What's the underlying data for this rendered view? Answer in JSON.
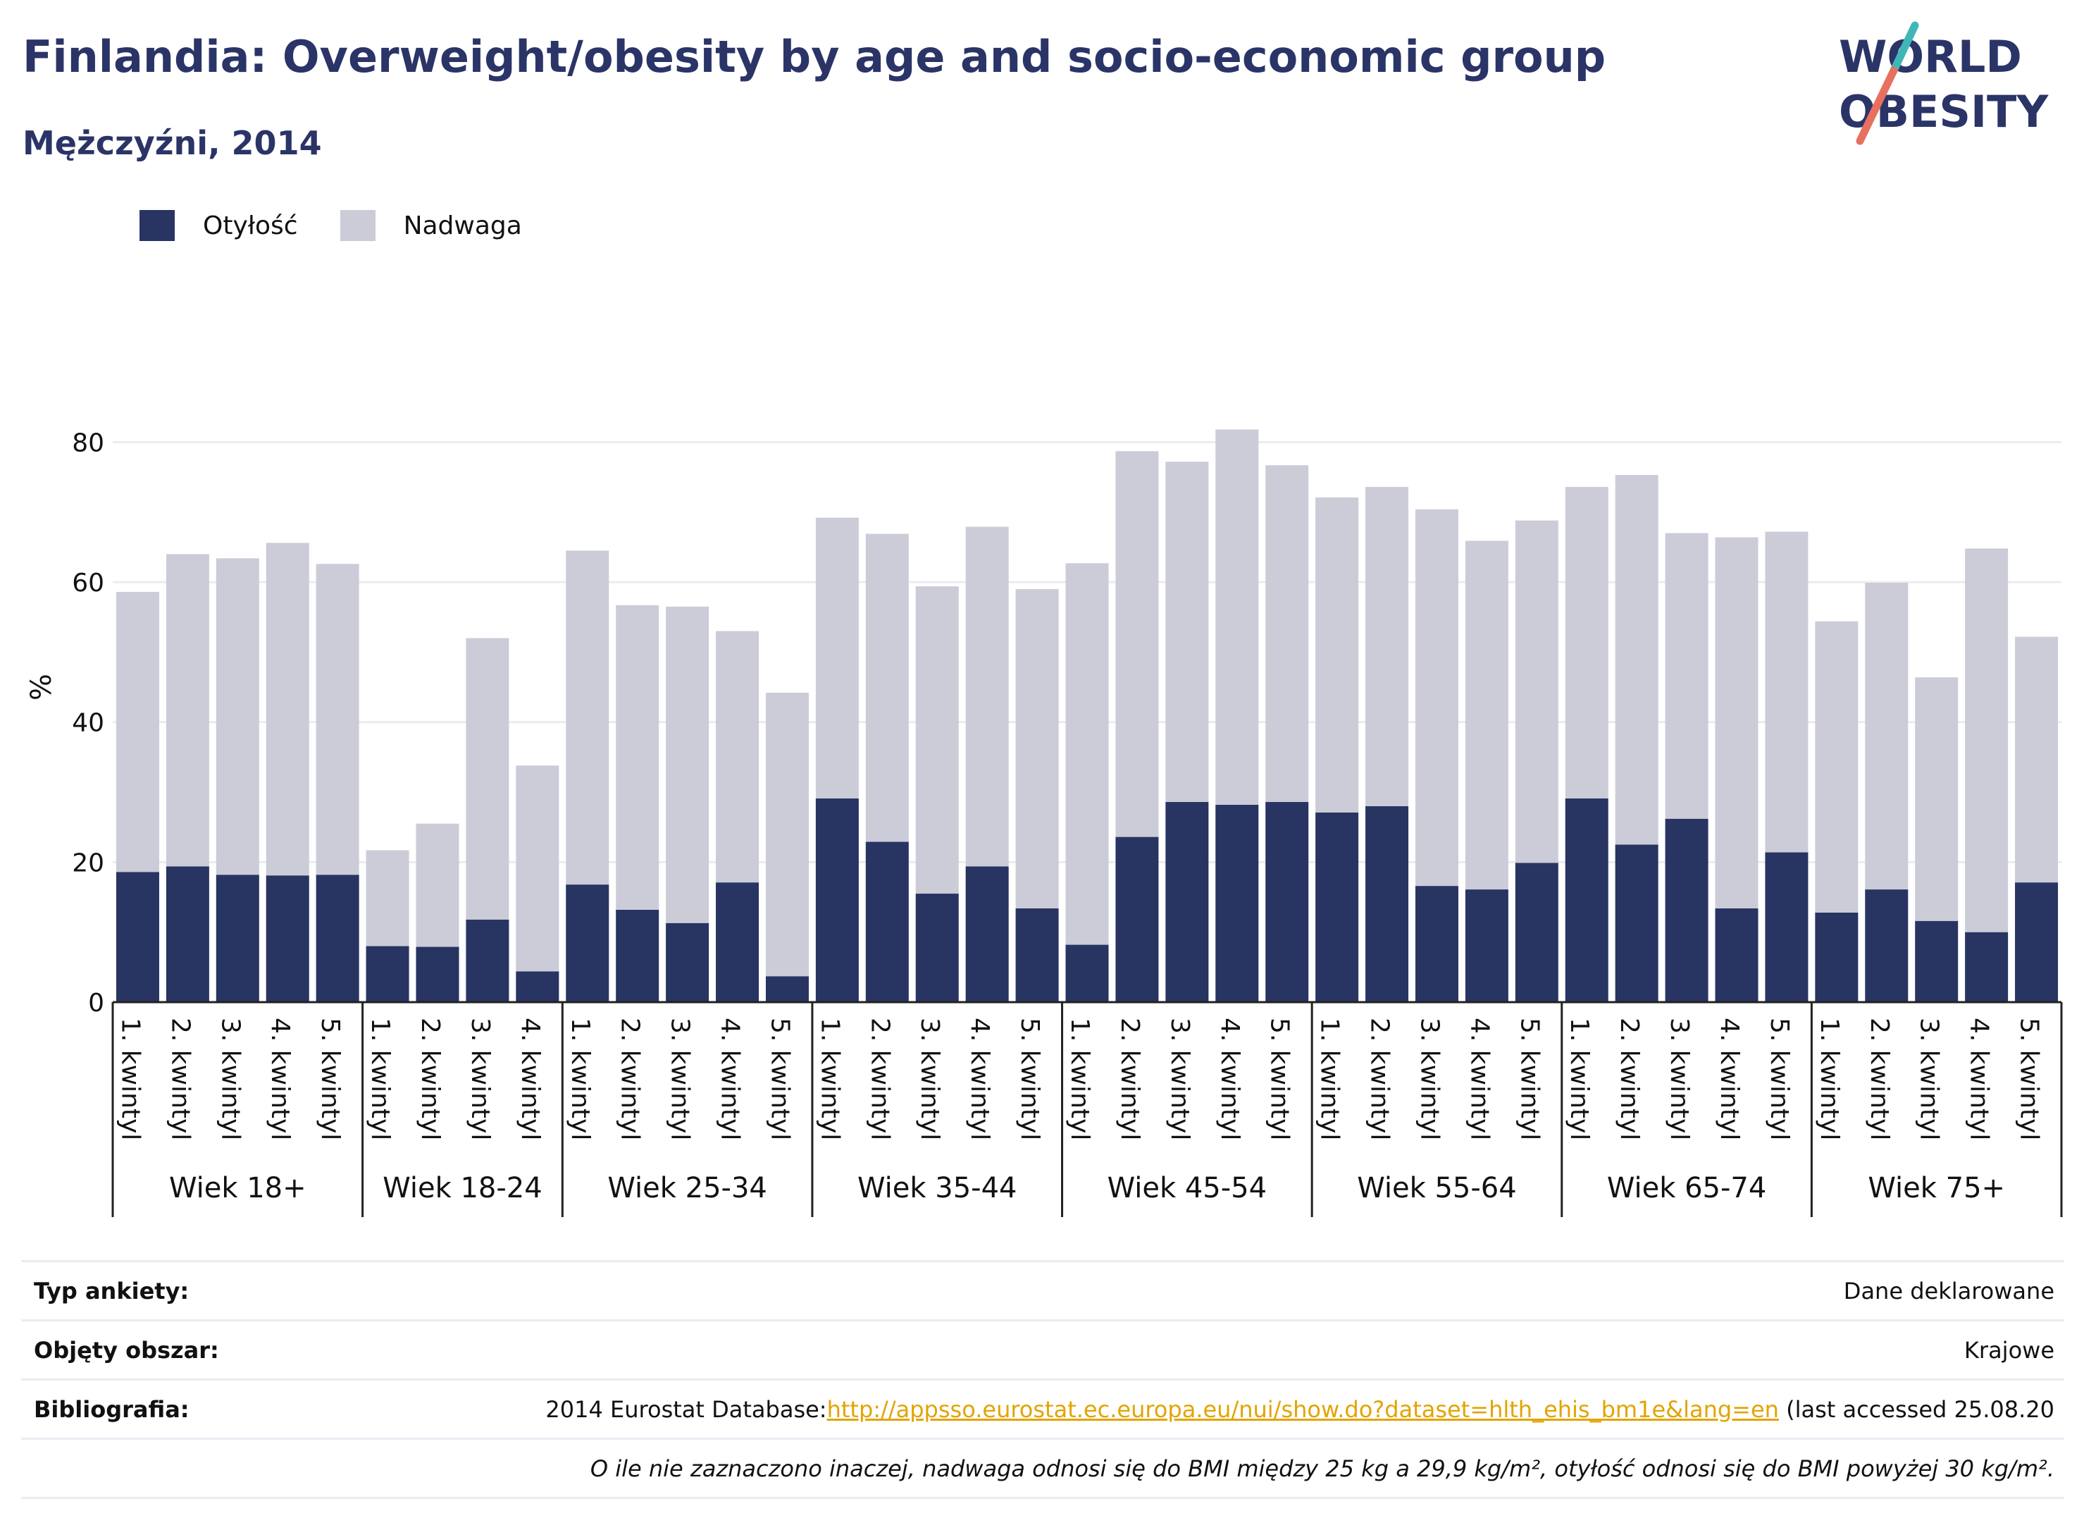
{
  "header": {
    "title": "Finlandia: Overweight/obesity by age and socio-economic group",
    "subtitle": "Mężczyźni, 2014",
    "logo_line1": "WORLD",
    "logo_line2": "OBESITY"
  },
  "legend": [
    {
      "label": "Otyłość",
      "color": "#283462"
    },
    {
      "label": "Nadwaga",
      "color": "#cbccd8"
    }
  ],
  "chart_data": {
    "type": "bar",
    "stacked": true,
    "ylabel": "%",
    "ylim": [
      0,
      90
    ],
    "yticks": [
      0,
      20,
      40,
      60,
      80
    ],
    "grid": true,
    "legend_position": "top-left",
    "categories": [
      "1. kwintyl",
      "2. kwintyl",
      "3. kwintyl",
      "4. kwintyl",
      "5. kwintyl",
      "1. kwintyl",
      "2. kwintyl",
      "3. kwintyl",
      "4. kwintyl",
      "1. kwintyl",
      "2. kwintyl",
      "3. kwintyl",
      "4. kwintyl",
      "5. kwintyl",
      "1. kwintyl",
      "2. kwintyl",
      "3. kwintyl",
      "4. kwintyl",
      "5. kwintyl",
      "1. kwintyl",
      "2. kwintyl",
      "3. kwintyl",
      "4. kwintyl",
      "5. kwintyl",
      "1. kwintyl",
      "2. kwintyl",
      "3. kwintyl",
      "4. kwintyl",
      "5. kwintyl",
      "1. kwintyl",
      "2. kwintyl",
      "3. kwintyl",
      "4. kwintyl",
      "5. kwintyl",
      "1. kwintyl",
      "2. kwintyl",
      "3. kwintyl",
      "4. kwintyl",
      "5. kwintyl"
    ],
    "groups": [
      {
        "label": "Wiek 18+",
        "count": 5
      },
      {
        "label": "Wiek 18-24",
        "count": 4
      },
      {
        "label": "Wiek 25-34",
        "count": 5
      },
      {
        "label": "Wiek 35-44",
        "count": 5
      },
      {
        "label": "Wiek 45-54",
        "count": 5
      },
      {
        "label": "Wiek 55-64",
        "count": 5
      },
      {
        "label": "Wiek 65-74",
        "count": 5
      },
      {
        "label": "Wiek 75+",
        "count": 5
      }
    ],
    "series": [
      {
        "name": "Otyłość",
        "color": "#283462",
        "values": [
          18.6,
          19.4,
          18.2,
          18.1,
          18.2,
          8.0,
          7.9,
          11.8,
          4.4,
          16.8,
          13.2,
          11.3,
          17.1,
          3.7,
          29.1,
          22.9,
          15.5,
          19.4,
          13.4,
          8.2,
          23.6,
          28.6,
          28.2,
          28.6,
          27.1,
          28.0,
          16.6,
          16.1,
          19.9,
          29.1,
          22.5,
          26.2,
          13.4,
          21.4,
          12.8,
          16.1,
          11.6,
          10.0,
          17.1
        ]
      },
      {
        "name": "Nadwaga",
        "color": "#cbccd8",
        "values": [
          40.0,
          44.6,
          45.2,
          47.5,
          44.4,
          13.7,
          17.6,
          40.2,
          29.4,
          47.7,
          43.5,
          45.2,
          35.9,
          40.5,
          40.1,
          44.0,
          43.9,
          48.5,
          45.6,
          54.5,
          55.1,
          48.6,
          53.6,
          48.1,
          45.0,
          45.6,
          53.8,
          49.8,
          48.9,
          44.5,
          52.8,
          40.8,
          53.0,
          45.8,
          41.6,
          43.8,
          34.8,
          54.8,
          35.1
        ]
      }
    ]
  },
  "footer": {
    "survey_label": "Typ ankiety:",
    "survey_value": "Dane deklarowane",
    "area_label": "Objęty obszar:",
    "area_value": "Krajowe",
    "biblio_label": "Bibliografia:",
    "biblio_prefix": "2014 Eurostat Database:",
    "biblio_link": "http://appsso.eurostat.ec.europa.eu/nui/show.do?dataset=hlth_ehis_bm1e&lang=en",
    "biblio_suffix": " (last accessed 25.08.20",
    "note": "O ile nie zaznaczono inaczej, nadwaga odnosi się do BMI między 25 kg a 29,9 kg/m², otyłość odnosi się do BMI powyżej 30 kg/m²."
  }
}
